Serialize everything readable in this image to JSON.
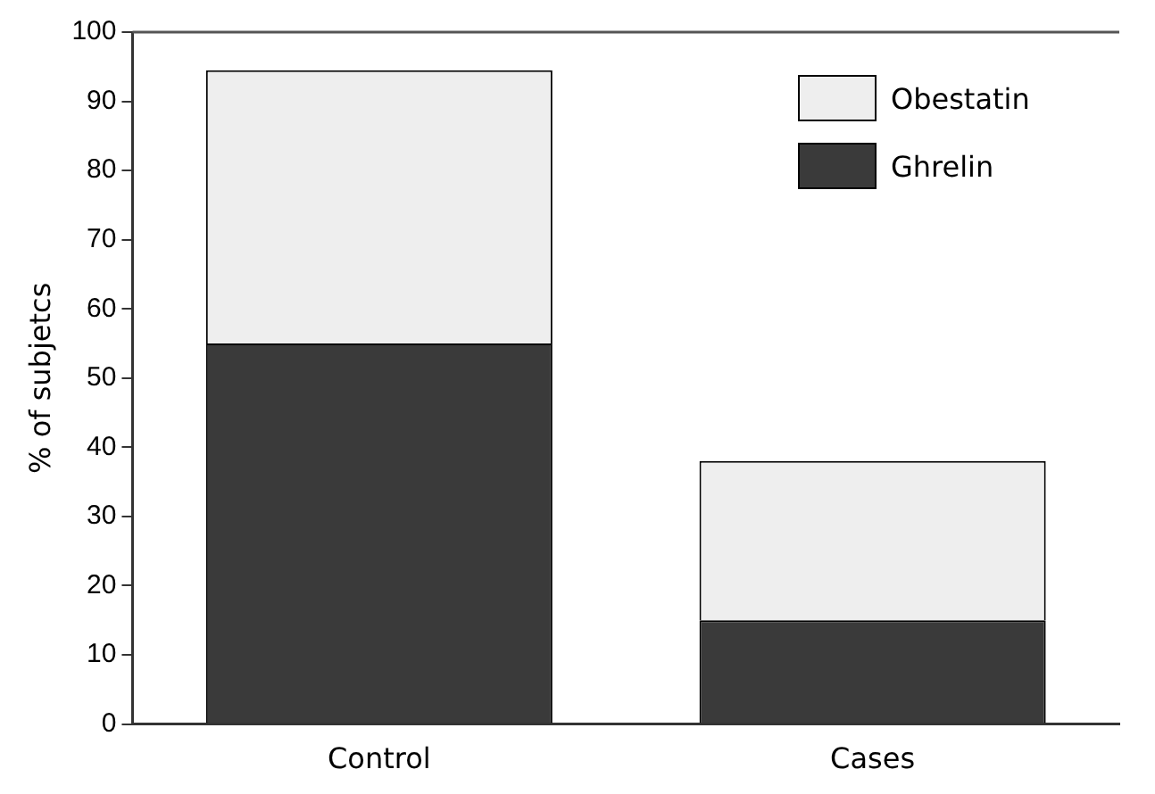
{
  "chart_data": {
    "type": "bar",
    "ylabel": "% of subjetcs",
    "categories": [
      "Control",
      "Cases"
    ],
    "stacked": true,
    "legend": "top right",
    "grid": false,
    "series": [
      {
        "name": "Ghrelin",
        "color": "#3a3a3a",
        "values": [
          55,
          15
        ]
      },
      {
        "name": "Obestatin",
        "color": "#eeeeee",
        "values": [
          39.5,
          23
        ]
      }
    ],
    "ylim": [
      0,
      100
    ],
    "yticks": [
      0,
      10,
      20,
      30,
      40,
      50,
      60,
      70,
      80,
      90,
      100
    ]
  }
}
